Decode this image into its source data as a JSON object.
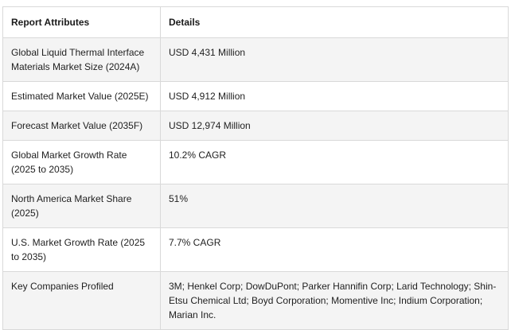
{
  "table": {
    "headers": [
      "Report Attributes",
      "Details"
    ],
    "rows": [
      {
        "attribute": "Global Liquid Thermal Interface Materials Market Size (2024A)",
        "detail": "USD 4,431 Million"
      },
      {
        "attribute": "Estimated Market Value (2025E)",
        "detail": "USD 4,912 Million"
      },
      {
        "attribute": "Forecast Market Value (2035F)",
        "detail": "USD 12,974 Million"
      },
      {
        "attribute": "Global Market Growth Rate (2025 to 2035)",
        "detail": "10.2% CAGR"
      },
      {
        "attribute": "North America Market Share (2025)",
        "detail": "51%"
      },
      {
        "attribute": "U.S. Market Growth Rate (2025 to 2035)",
        "detail": "7.7% CAGR"
      },
      {
        "attribute": "Key Companies Profiled",
        "detail": "3M; Henkel Corp; DowDuPont; Parker Hannifin Corp; Larid Technology; Shin-Etsu Chemical Ltd; Boyd Corporation; Momentive Inc; Indium Corporation; Marian Inc."
      }
    ]
  }
}
